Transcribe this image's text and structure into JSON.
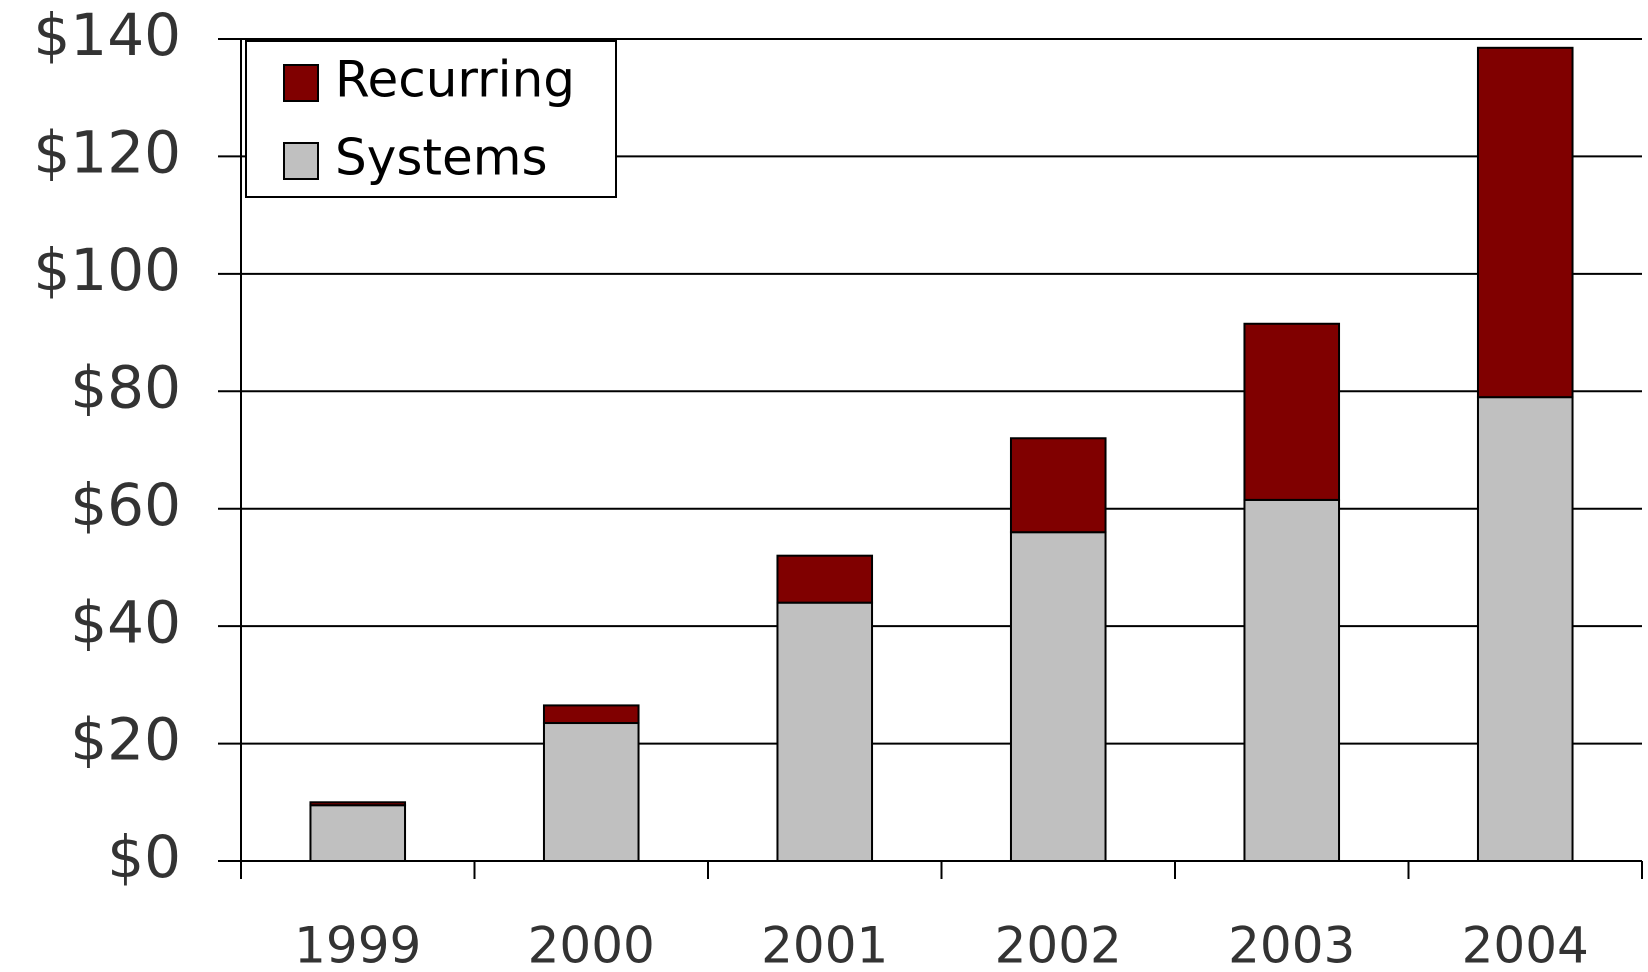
{
  "chart_data": {
    "type": "stacked_bar",
    "categories": [
      "1999",
      "2000",
      "2001",
      "2002",
      "2003",
      "2004"
    ],
    "series": [
      {
        "name": "Systems",
        "color": "#c0c0c0",
        "values": [
          9.5,
          23.5,
          44,
          56,
          61.5,
          79
        ]
      },
      {
        "name": "Recurring",
        "color": "#800000",
        "values": [
          0.5,
          3,
          8,
          16,
          30,
          59.5
        ]
      }
    ],
    "ylim": [
      0,
      140
    ],
    "yticks": [
      {
        "value": 0,
        "label": "$0"
      },
      {
        "value": 20,
        "label": "$20"
      },
      {
        "value": 40,
        "label": "$40"
      },
      {
        "value": 60,
        "label": "$60"
      },
      {
        "value": 80,
        "label": "$80"
      },
      {
        "value": 100,
        "label": "$100"
      },
      {
        "value": 120,
        "label": "$120"
      },
      {
        "value": 140,
        "label": "$140"
      }
    ],
    "grid": true,
    "legend": "upper left"
  }
}
